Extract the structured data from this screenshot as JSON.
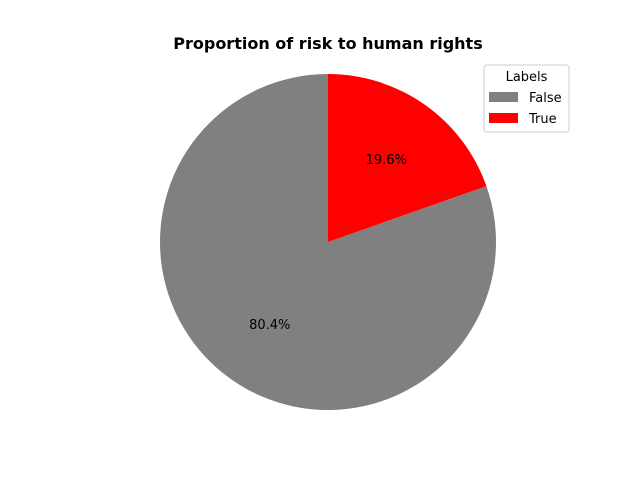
{
  "chart_data": {
    "type": "pie",
    "title": "Proportion of risk to human rights",
    "slices": [
      {
        "label": "False",
        "value": 80.4,
        "pct_label": "80.4%",
        "color": "#808080"
      },
      {
        "label": "True",
        "value": 19.6,
        "pct_label": "19.6%",
        "color": "#ff0000"
      }
    ],
    "start_angle_deg": 90,
    "direction": "counterclockwise",
    "legend": {
      "title": "Labels",
      "placement": "upper-right",
      "entries": [
        "False",
        "True"
      ]
    }
  }
}
